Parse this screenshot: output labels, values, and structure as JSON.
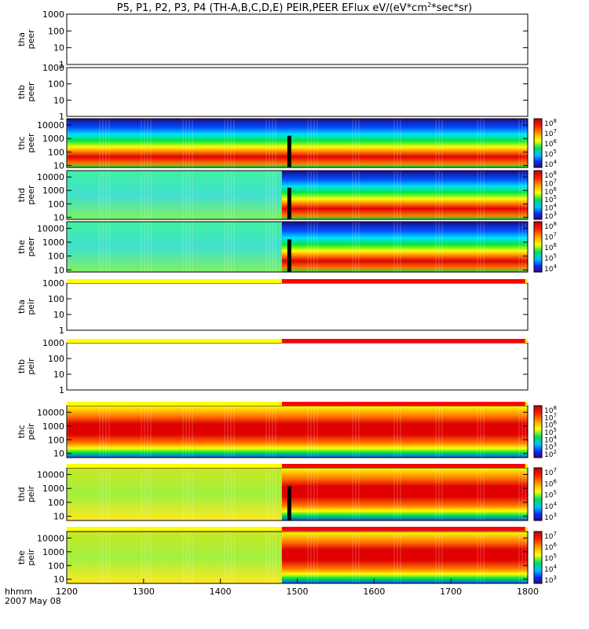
{
  "title_main": "P5, P1, P2, P3, P4 (TH-A,B,C,D,E) PEIR,PEER EFlux eV/(eV*cm",
  "title_sup": "2",
  "title_end": "*sec*sr)",
  "footer": {
    "label1": "hhmm",
    "label2": "2007 May 08"
  },
  "x_ticks": [
    "1200",
    "1300",
    "1400",
    "1500",
    "1600",
    "1700",
    "1800"
  ],
  "chart_data": {
    "type": "heatmap",
    "xlim": [
      "1200",
      "1800"
    ],
    "panels": [
      {
        "id": "tha_peer",
        "ylabel": [
          "tha",
          "peer"
        ],
        "ylim": [
          1,
          1000
        ],
        "yticks": [
          "1000",
          "100",
          "10",
          "1"
        ],
        "empty": true,
        "status_bar": false,
        "colorbar": []
      },
      {
        "id": "thb_peer",
        "ylabel": [
          "thb",
          "peer"
        ],
        "ylim": [
          1,
          1000
        ],
        "yticks": [
          "1000",
          "100",
          "10",
          "1"
        ],
        "empty": true,
        "status_bar": false,
        "colorbar": []
      },
      {
        "id": "thc_peer",
        "ylabel": [
          "thc",
          "peer"
        ],
        "ylim": [
          7,
          30000
        ],
        "yticks": [
          "10000",
          "1000",
          "100",
          "10"
        ],
        "empty": false,
        "status_bar": false,
        "colorbar": [
          "10^8",
          "10^7",
          "10^6",
          "10^5",
          "10^4"
        ]
      },
      {
        "id": "thd_peer",
        "ylabel": [
          "thd",
          "peer"
        ],
        "ylim": [
          7,
          30000
        ],
        "yticks": [
          "10000",
          "1000",
          "100",
          "10"
        ],
        "empty": false,
        "status_bar": false,
        "colorbar": [
          "10^8",
          "10^7",
          "10^6",
          "10^5",
          "10^4",
          "10^3"
        ]
      },
      {
        "id": "the_peer",
        "ylabel": [
          "the",
          "peer"
        ],
        "ylim": [
          7,
          30000
        ],
        "yticks": [
          "10000",
          "1000",
          "100",
          "10"
        ],
        "empty": false,
        "status_bar": false,
        "colorbar": [
          "10^8",
          "10^7",
          "10^6",
          "10^5",
          "10^4"
        ]
      },
      {
        "id": "tha_peir",
        "ylabel": [
          "tha",
          "peir"
        ],
        "ylim": [
          1,
          1000
        ],
        "yticks": [
          "1000",
          "100",
          "10",
          "1"
        ],
        "empty": true,
        "status_bar": true,
        "colorbar": []
      },
      {
        "id": "thb_peir",
        "ylabel": [
          "thb",
          "peir"
        ],
        "ylim": [
          1,
          1000
        ],
        "yticks": [
          "1000",
          "100",
          "10",
          "1"
        ],
        "empty": true,
        "status_bar": true,
        "colorbar": []
      },
      {
        "id": "thc_peir",
        "ylabel": [
          "thc",
          "peir"
        ],
        "ylim": [
          5,
          30000
        ],
        "yticks": [
          "10000",
          "1000",
          "100",
          "10"
        ],
        "empty": false,
        "status_bar": true,
        "colorbar": [
          "10^8",
          "10^7",
          "10^6",
          "10^5",
          "10^4",
          "10^3",
          "10^2"
        ]
      },
      {
        "id": "thd_peir",
        "ylabel": [
          "thd",
          "peir"
        ],
        "ylim": [
          5,
          30000
        ],
        "yticks": [
          "10000",
          "1000",
          "100",
          "10"
        ],
        "empty": false,
        "status_bar": true,
        "colorbar": [
          "10^7",
          "10^6",
          "10^5",
          "10^4",
          "10^3"
        ]
      },
      {
        "id": "the_peir",
        "ylabel": [
          "the",
          "peir"
        ],
        "ylim": [
          5,
          30000
        ],
        "yticks": [
          "10000",
          "1000",
          "100",
          "10"
        ],
        "empty": false,
        "status_bar": true,
        "colorbar": [
          "10^7",
          "10^6",
          "10^5",
          "10^4",
          "10^3"
        ]
      }
    ],
    "status_bar_colors": {
      "before": "#ffff00",
      "after": "#ff0000",
      "switch_time": "1448",
      "end_time": "1758"
    },
    "colors": {
      "red": "#e00000",
      "orange": "#ff7a00",
      "yellow": "#ffff00",
      "green": "#00e640",
      "cyan": "#00e0ff",
      "blue": "#0050ff",
      "navy": "#1a0a8c"
    }
  }
}
